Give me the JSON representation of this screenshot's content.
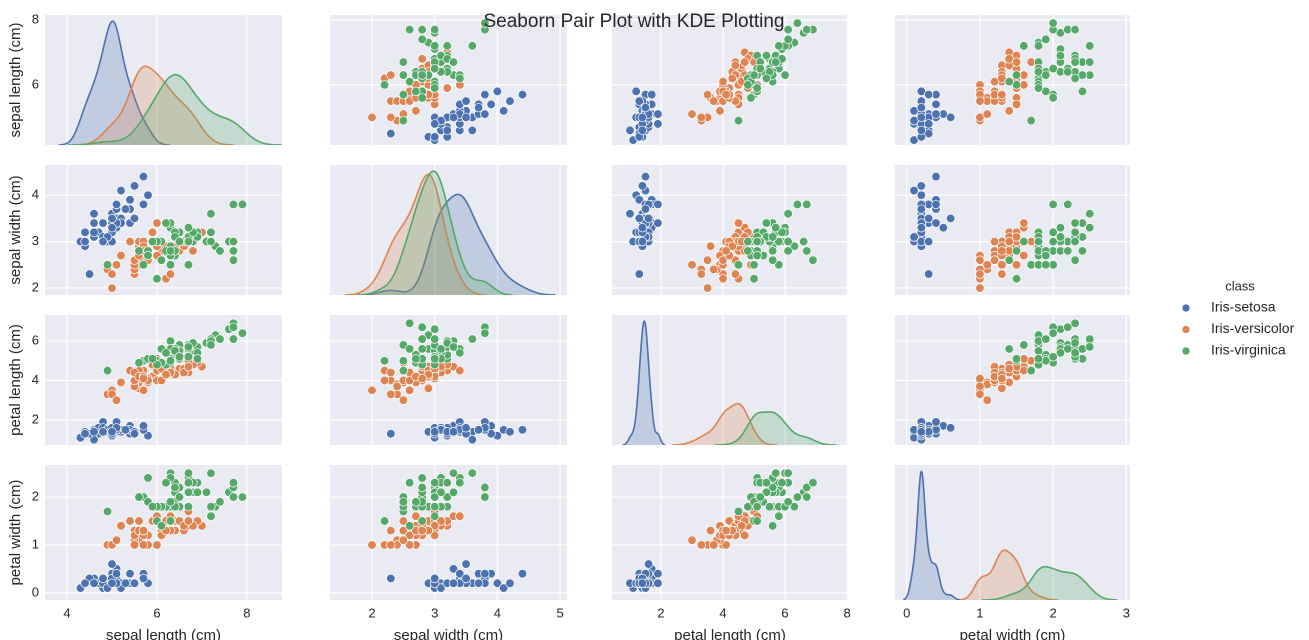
{
  "chart_data": {
    "type": "pairplot",
    "title": "Seaborn Pair Plot with KDE Plotting",
    "legend_title": "class",
    "variables": [
      {
        "label": "sepal length (cm)",
        "xlim": [
          3.51,
          8.78
        ],
        "xticks": [
          4,
          6,
          8
        ],
        "ylim": [
          4.15,
          8.15
        ],
        "yticks": [
          6,
          8
        ]
      },
      {
        "label": "sepal width (cm)",
        "xlim": [
          1.33,
          5.11
        ],
        "xticks": [
          2,
          3,
          4,
          5
        ],
        "ylim": [
          1.85,
          4.65
        ],
        "yticks": [
          2,
          3,
          4
        ]
      },
      {
        "label": "petal length (cm)",
        "xlim": [
          0.42,
          8.03
        ],
        "xticks": [
          2,
          4,
          6,
          8
        ],
        "ylim": [
          0.73,
          7.32
        ],
        "yticks": [
          2,
          4,
          6
        ]
      },
      {
        "label": "petal width (cm)",
        "xlim": [
          -0.16,
          3.05
        ],
        "xticks": [
          0,
          1,
          2,
          3
        ],
        "ylim": [
          -0.15,
          2.67
        ],
        "yticks": [
          0,
          1,
          2
        ]
      }
    ],
    "series": [
      {
        "name": "Iris-setosa",
        "color": "#4c72b0",
        "columns": [
          [
            5.1,
            4.9,
            4.7,
            4.6,
            5.0,
            5.4,
            4.6,
            5.0,
            4.4,
            4.9,
            5.4,
            4.8,
            4.8,
            4.3,
            5.8,
            5.7,
            5.4,
            5.1,
            5.7,
            5.1,
            5.4,
            5.1,
            4.6,
            5.1,
            4.8,
            5.0,
            5.0,
            5.2,
            5.2,
            4.7,
            4.8,
            5.4,
            5.2,
            5.5,
            4.9,
            5.0,
            5.5,
            4.9,
            4.4,
            5.1,
            5.0,
            4.5,
            4.4,
            5.0,
            5.1,
            4.8,
            5.1,
            4.6,
            5.3,
            5.0
          ],
          [
            3.5,
            3.0,
            3.2,
            3.1,
            3.6,
            3.9,
            3.4,
            3.4,
            2.9,
            3.1,
            3.7,
            3.4,
            3.0,
            3.0,
            4.0,
            4.4,
            3.9,
            3.5,
            3.8,
            3.8,
            3.4,
            3.7,
            3.6,
            3.3,
            3.4,
            3.0,
            3.4,
            3.5,
            3.4,
            3.2,
            3.1,
            3.4,
            4.1,
            4.2,
            3.1,
            3.2,
            3.5,
            3.1,
            3.0,
            3.4,
            3.5,
            2.3,
            3.2,
            3.5,
            3.8,
            3.0,
            3.8,
            3.2,
            3.7,
            3.3
          ],
          [
            1.4,
            1.4,
            1.3,
            1.5,
            1.4,
            1.7,
            1.4,
            1.5,
            1.4,
            1.5,
            1.5,
            1.6,
            1.4,
            1.1,
            1.2,
            1.5,
            1.3,
            1.4,
            1.7,
            1.5,
            1.7,
            1.5,
            1.0,
            1.7,
            1.9,
            1.6,
            1.6,
            1.5,
            1.4,
            1.6,
            1.6,
            1.5,
            1.5,
            1.4,
            1.5,
            1.2,
            1.3,
            1.5,
            1.3,
            1.5,
            1.3,
            1.3,
            1.3,
            1.6,
            1.9,
            1.4,
            1.6,
            1.4,
            1.5,
            1.4
          ],
          [
            0.2,
            0.2,
            0.2,
            0.2,
            0.2,
            0.4,
            0.3,
            0.2,
            0.2,
            0.1,
            0.2,
            0.2,
            0.1,
            0.1,
            0.2,
            0.4,
            0.4,
            0.3,
            0.3,
            0.3,
            0.2,
            0.4,
            0.2,
            0.5,
            0.2,
            0.2,
            0.4,
            0.2,
            0.2,
            0.2,
            0.2,
            0.4,
            0.1,
            0.2,
            0.1,
            0.2,
            0.2,
            0.1,
            0.2,
            0.2,
            0.3,
            0.3,
            0.2,
            0.6,
            0.4,
            0.3,
            0.2,
            0.2,
            0.2,
            0.2
          ]
        ]
      },
      {
        "name": "Iris-versicolor",
        "color": "#dd8452",
        "columns": [
          [
            7.0,
            6.4,
            6.9,
            5.5,
            6.5,
            5.7,
            6.3,
            4.9,
            6.6,
            5.2,
            5.0,
            5.9,
            6.0,
            6.1,
            5.6,
            6.7,
            5.6,
            5.8,
            6.2,
            5.6,
            5.9,
            6.1,
            6.3,
            6.1,
            6.4,
            6.6,
            6.8,
            6.7,
            6.0,
            5.7,
            5.5,
            5.5,
            5.8,
            6.0,
            5.4,
            6.0,
            6.7,
            6.3,
            5.6,
            5.5,
            5.5,
            6.1,
            5.8,
            5.0,
            5.6,
            5.7,
            5.7,
            6.2,
            5.1,
            5.7
          ],
          [
            3.2,
            3.2,
            3.1,
            2.3,
            2.8,
            2.8,
            3.3,
            2.4,
            2.9,
            2.7,
            2.0,
            3.0,
            2.2,
            2.9,
            2.9,
            3.1,
            3.0,
            2.7,
            2.2,
            2.5,
            3.2,
            2.8,
            2.5,
            2.8,
            2.9,
            3.0,
            2.8,
            3.0,
            2.9,
            2.6,
            2.4,
            2.4,
            2.7,
            2.7,
            3.0,
            3.4,
            3.1,
            2.3,
            3.0,
            2.5,
            2.6,
            3.0,
            2.6,
            2.3,
            2.7,
            3.0,
            2.9,
            2.9,
            2.5,
            2.8
          ],
          [
            4.7,
            4.5,
            4.9,
            4.0,
            4.6,
            4.5,
            4.7,
            3.3,
            4.6,
            3.9,
            3.5,
            4.2,
            4.0,
            4.7,
            3.6,
            4.4,
            4.5,
            4.1,
            4.5,
            3.9,
            4.8,
            4.0,
            4.9,
            4.7,
            4.3,
            4.4,
            4.8,
            5.0,
            4.5,
            3.5,
            3.8,
            3.7,
            3.9,
            5.1,
            4.5,
            4.5,
            4.7,
            4.4,
            4.1,
            4.0,
            4.4,
            4.6,
            4.0,
            3.3,
            4.2,
            4.2,
            4.2,
            4.3,
            3.0,
            4.1
          ],
          [
            1.4,
            1.5,
            1.5,
            1.3,
            1.5,
            1.3,
            1.6,
            1.0,
            1.3,
            1.4,
            1.0,
            1.5,
            1.0,
            1.4,
            1.3,
            1.4,
            1.5,
            1.0,
            1.5,
            1.1,
            1.8,
            1.3,
            1.5,
            1.2,
            1.3,
            1.4,
            1.4,
            1.7,
            1.5,
            1.0,
            1.1,
            1.0,
            1.2,
            1.6,
            1.5,
            1.6,
            1.5,
            1.3,
            1.3,
            1.3,
            1.2,
            1.4,
            1.2,
            1.0,
            1.3,
            1.2,
            1.3,
            1.3,
            1.1,
            1.3
          ]
        ]
      },
      {
        "name": "Iris-virginica",
        "color": "#55a868",
        "columns": [
          [
            6.3,
            5.8,
            7.1,
            6.3,
            6.5,
            7.6,
            4.9,
            7.3,
            6.7,
            7.2,
            6.5,
            6.4,
            6.8,
            5.7,
            5.8,
            6.4,
            6.5,
            7.7,
            7.7,
            6.0,
            6.9,
            5.6,
            7.7,
            6.3,
            6.7,
            7.2,
            6.2,
            6.1,
            6.4,
            7.2,
            7.4,
            7.9,
            6.4,
            6.3,
            6.1,
            7.7,
            6.3,
            6.4,
            6.0,
            6.9,
            6.7,
            6.9,
            5.8,
            6.8,
            6.7,
            6.7,
            6.3,
            6.5,
            6.2,
            5.9
          ],
          [
            3.3,
            2.7,
            3.0,
            2.9,
            3.0,
            3.0,
            2.5,
            2.9,
            2.5,
            3.6,
            3.2,
            2.7,
            3.0,
            2.5,
            2.8,
            3.2,
            3.0,
            3.8,
            2.6,
            2.2,
            3.2,
            2.8,
            2.8,
            2.7,
            3.3,
            3.2,
            2.8,
            3.0,
            2.8,
            3.0,
            2.8,
            3.8,
            2.8,
            2.8,
            2.6,
            3.0,
            3.4,
            3.1,
            3.0,
            3.1,
            3.1,
            3.1,
            2.7,
            3.2,
            3.3,
            3.0,
            2.5,
            3.0,
            3.4,
            3.0
          ],
          [
            6.0,
            5.1,
            5.9,
            5.6,
            5.8,
            6.6,
            4.5,
            6.3,
            5.8,
            6.1,
            5.1,
            5.3,
            5.5,
            5.0,
            5.1,
            5.3,
            5.5,
            6.7,
            6.9,
            5.0,
            5.7,
            4.9,
            6.7,
            4.9,
            5.7,
            6.0,
            4.8,
            4.9,
            5.6,
            5.8,
            6.1,
            6.4,
            5.6,
            5.1,
            5.6,
            6.1,
            5.6,
            5.5,
            4.8,
            5.4,
            5.6,
            5.1,
            5.1,
            5.9,
            5.7,
            5.2,
            5.0,
            5.2,
            5.4,
            5.1
          ],
          [
            2.5,
            1.9,
            2.1,
            1.8,
            2.2,
            2.1,
            1.7,
            1.8,
            1.8,
            2.5,
            2.0,
            1.9,
            2.1,
            2.0,
            2.4,
            2.3,
            1.8,
            2.2,
            2.3,
            1.5,
            2.3,
            2.0,
            2.0,
            1.8,
            2.1,
            1.8,
            1.8,
            1.8,
            2.1,
            1.6,
            1.9,
            2.0,
            2.2,
            1.5,
            1.4,
            2.3,
            2.4,
            1.8,
            1.8,
            2.1,
            2.4,
            2.3,
            1.9,
            2.3,
            2.5,
            2.3,
            1.9,
            2.0,
            2.3,
            1.8
          ]
        ]
      }
    ]
  }
}
